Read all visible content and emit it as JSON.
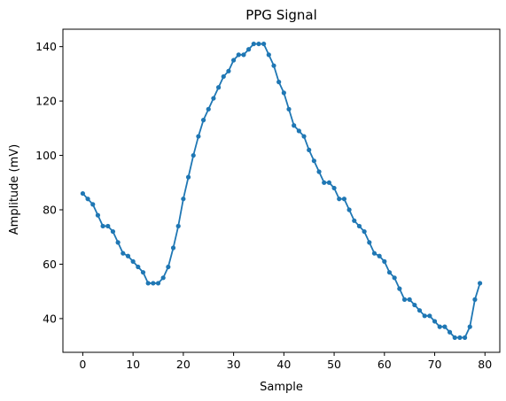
{
  "chart_data": {
    "type": "line",
    "title": "PPG Signal",
    "xlabel": "Sample",
    "ylabel": "Amplitude (mV)",
    "xlim": [
      -3.95,
      82.95
    ],
    "ylim": [
      27.6,
      146.4
    ],
    "x_ticks": [
      0,
      10,
      20,
      30,
      40,
      50,
      60,
      70,
      80
    ],
    "y_ticks": [
      40,
      60,
      80,
      100,
      120,
      140
    ],
    "grid": false,
    "series": [
      {
        "color": "#1f77b4",
        "marker": "circle",
        "x": [
          0,
          1,
          2,
          3,
          4,
          5,
          6,
          7,
          8,
          9,
          10,
          11,
          12,
          13,
          14,
          15,
          16,
          17,
          18,
          19,
          20,
          21,
          22,
          23,
          24,
          25,
          26,
          27,
          28,
          29,
          30,
          31,
          32,
          33,
          34,
          35,
          36,
          37,
          38,
          39,
          40,
          41,
          42,
          43,
          44,
          45,
          46,
          47,
          48,
          49,
          50,
          51,
          52,
          53,
          54,
          55,
          56,
          57,
          58,
          59,
          60,
          61,
          62,
          63,
          64,
          65,
          66,
          67,
          68,
          69,
          70,
          71,
          72,
          73,
          74,
          75,
          76,
          77,
          78,
          79
        ],
        "y": [
          86,
          84,
          82,
          78,
          74,
          74,
          72,
          68,
          64,
          63,
          61,
          59,
          57,
          53,
          53,
          53,
          55,
          59,
          66,
          74,
          84,
          92,
          100,
          107,
          113,
          117,
          121,
          125,
          129,
          131,
          135,
          137,
          137,
          139,
          141,
          141,
          141,
          137,
          133,
          127,
          123,
          117,
          111,
          109,
          107,
          102,
          98,
          94,
          90,
          90,
          88,
          84,
          84,
          80,
          76,
          74,
          72,
          68,
          64,
          63,
          61,
          57,
          55,
          51,
          47,
          47,
          45,
          43,
          41,
          41,
          39,
          37,
          37,
          35,
          33,
          33,
          33,
          37,
          47,
          53
        ]
      }
    ]
  }
}
